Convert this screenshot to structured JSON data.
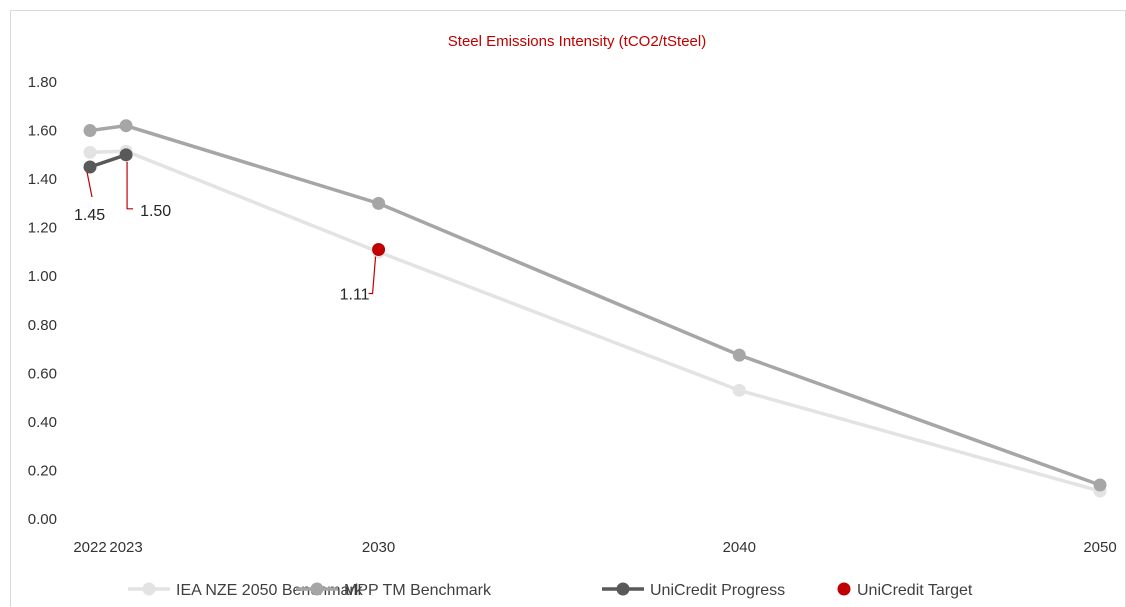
{
  "chart_data": {
    "type": "line",
    "title": "Steel Emissions Intensity (tCO2/tSteel)",
    "xlabel": "",
    "ylabel": "",
    "x_ticks": [
      "2022",
      "2023",
      "2030",
      "2040",
      "2050"
    ],
    "xlim": [
      2022,
      2050
    ],
    "y_ticks": [
      "0.00",
      "0.20",
      "0.40",
      "0.60",
      "0.80",
      "1.00",
      "1.20",
      "1.40",
      "1.60",
      "1.80"
    ],
    "ylim": [
      0,
      1.8
    ],
    "grid": false,
    "legend_position": "bottom",
    "series": [
      {
        "name": "IEA NZE 2050 Benchmark",
        "color": "#e3e3e3",
        "marker": true,
        "line": true,
        "points": [
          [
            2022,
            1.51
          ],
          [
            2023,
            1.515
          ],
          [
            2030,
            1.1
          ],
          [
            2040,
            0.53
          ],
          [
            2050,
            0.115
          ]
        ]
      },
      {
        "name": "MPP TM Benchmark",
        "color": "#a6a6a6",
        "marker": true,
        "line": true,
        "points": [
          [
            2022,
            1.6
          ],
          [
            2023,
            1.62
          ],
          [
            2030,
            1.3
          ],
          [
            2040,
            0.675
          ],
          [
            2050,
            0.14
          ]
        ]
      },
      {
        "name": "UniCredit Progress",
        "color": "#595959",
        "marker": true,
        "line": true,
        "points": [
          [
            2022,
            1.45
          ],
          [
            2023,
            1.5
          ]
        ]
      },
      {
        "name": "UniCredit Target",
        "color": "#c00000",
        "marker": true,
        "line": false,
        "points": [
          [
            2030,
            1.11
          ]
        ]
      }
    ],
    "data_labels": [
      {
        "text": "1.45",
        "x": 2022,
        "y": 1.45
      },
      {
        "text": "1.50",
        "x": 2023,
        "y": 1.5
      },
      {
        "text": "1.11",
        "x": 2030,
        "y": 1.11
      }
    ],
    "label_leader_color": "#c00000"
  }
}
